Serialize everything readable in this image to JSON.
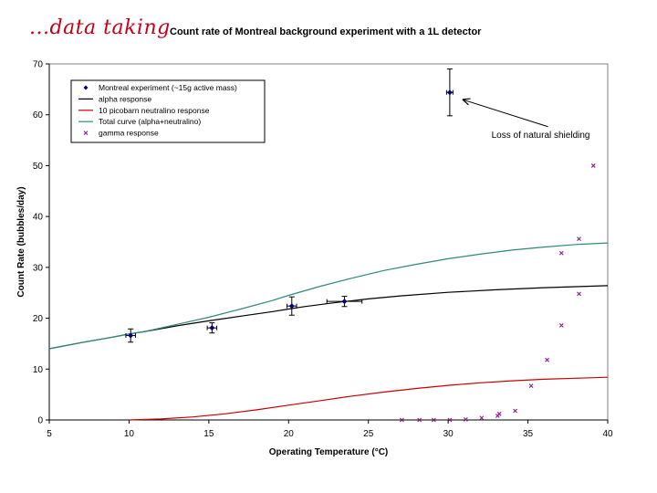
{
  "header": {
    "script_text": "...data taking",
    "title": "Count rate of Montreal background experiment with a 1L detector"
  },
  "chart_data": {
    "type": "scatter",
    "xlabel": "Operating Temperature (°C)",
    "ylabel": "Count Rate (bubbles/day)",
    "xlim": [
      5,
      40
    ],
    "ylim": [
      0,
      70
    ],
    "x_ticks": [
      "5",
      "10",
      "15",
      "20",
      "25",
      "30",
      "35",
      "40"
    ],
    "y_ticks": [
      "0",
      "10",
      "20",
      "30",
      "40",
      "50",
      "60",
      "70"
    ],
    "grid": false,
    "legend_position": "top-left",
    "colors": {
      "experiment": "#00007f",
      "alpha": "#000000",
      "neutralino": "#cc0000",
      "total": "#2e8b7a",
      "gamma": "#8b1a8b"
    },
    "series": [
      {
        "key": "experiment",
        "name": "Montreal experiment (~15g active mass)",
        "kind": "points_with_errors",
        "points": [
          {
            "x": 10.1,
            "y": 16.6,
            "ey": 1.3,
            "ex": 0.3
          },
          {
            "x": 15.2,
            "y": 18.1,
            "ey": 1.0,
            "ex": 0.3
          },
          {
            "x": 20.2,
            "y": 22.4,
            "ey": 1.8,
            "ex": 0.3
          },
          {
            "x": 23.5,
            "y": 23.3,
            "ey": 1.0,
            "ex": 1.1
          },
          {
            "x": 30.1,
            "y": 64.4,
            "ey": 4.6,
            "ex": 0.2
          }
        ]
      },
      {
        "key": "alpha",
        "name": "alpha response",
        "kind": "line",
        "x": [
          5,
          7,
          9,
          10,
          11,
          13,
          15,
          17,
          19,
          20,
          21,
          23,
          25,
          27,
          30,
          33,
          36,
          38,
          40
        ],
        "y": [
          14,
          15.2,
          16.3,
          16.9,
          17.4,
          18.5,
          19.5,
          20.4,
          21.3,
          21.8,
          22.3,
          23.1,
          23.8,
          24.4,
          25.1,
          25.6,
          26.0,
          26.2,
          26.4
        ]
      },
      {
        "key": "neutralino",
        "name": "10 picobarn neutralino response",
        "kind": "line",
        "x": [
          10,
          12,
          14,
          16,
          18,
          20,
          22,
          24,
          26,
          28,
          30,
          32,
          34,
          36,
          38,
          40
        ],
        "y": [
          0,
          0.2,
          0.6,
          1.2,
          2.0,
          2.9,
          3.8,
          4.7,
          5.5,
          6.2,
          6.8,
          7.3,
          7.7,
          8.0,
          8.2,
          8.4
        ]
      },
      {
        "key": "total",
        "name": "Total curve (alpha+neutralino)",
        "kind": "line",
        "x": [
          5,
          7,
          9,
          10,
          11,
          13,
          15,
          17,
          19,
          20,
          22,
          24,
          26,
          28,
          30,
          32,
          34,
          36,
          38,
          40
        ],
        "y": [
          14,
          15.2,
          16.3,
          16.9,
          17.4,
          18.8,
          20.2,
          21.8,
          23.5,
          24.5,
          26.3,
          27.9,
          29.4,
          30.6,
          31.7,
          32.6,
          33.4,
          34.0,
          34.5,
          34.8
        ]
      },
      {
        "key": "gamma",
        "name": "gamma response",
        "kind": "markers_x",
        "points": [
          {
            "x": 27.1,
            "y": 0
          },
          {
            "x": 28.2,
            "y": 0
          },
          {
            "x": 29.1,
            "y": 0
          },
          {
            "x": 30.1,
            "y": 0
          },
          {
            "x": 31.1,
            "y": 0.1
          },
          {
            "x": 32.1,
            "y": 0.4
          },
          {
            "x": 33.1,
            "y": 0.8
          },
          {
            "x": 33.2,
            "y": 1.2
          },
          {
            "x": 34.2,
            "y": 1.8
          },
          {
            "x": 35.2,
            "y": 6.7
          },
          {
            "x": 36.2,
            "y": 11.8
          },
          {
            "x": 37.1,
            "y": 18.6
          },
          {
            "x": 38.2,
            "y": 24.8
          },
          {
            "x": 37.1,
            "y": 32.8
          },
          {
            "x": 38.2,
            "y": 35.6
          },
          {
            "x": 39.1,
            "y": 50
          }
        ]
      }
    ],
    "annotations": [
      {
        "text": "Loss of natural shielding",
        "arrow_to": {
          "x": 30.9,
          "y": 63.0
        },
        "text_at": {
          "x": 35.8,
          "y": 55.5
        }
      }
    ]
  }
}
